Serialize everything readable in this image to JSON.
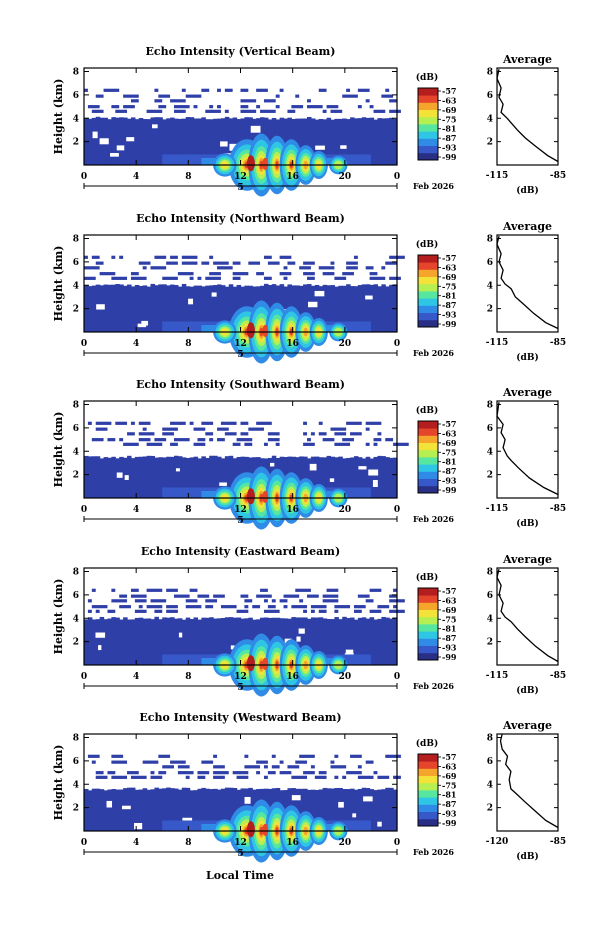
{
  "figure": {
    "xlabel": "Local Time",
    "date_label": "Feb 2026",
    "day_label": "5",
    "time_ticks": [
      "0",
      "4",
      "8",
      "12",
      "16",
      "20",
      "0"
    ],
    "height_ticks": [
      "2",
      "4",
      "6",
      "8"
    ],
    "colorbar_unit": "(dB)",
    "colorbar_ticks": [
      "-57",
      "-63",
      "-69",
      "-75",
      "-81",
      "-87",
      "-93",
      "-99"
    ],
    "avg_title": "Average",
    "avg_xlabel": "(dB)",
    "echo_color": "#2f3fa8",
    "colormap": [
      "#2a2f86",
      "#3658c8",
      "#2f8be6",
      "#2fc6e6",
      "#56e6a0",
      "#b6ef52",
      "#f3e339",
      "#f5a52b",
      "#e5452a",
      "#b51e1e"
    ]
  },
  "chart_data": [
    {
      "type": "heatmap",
      "title": "Echo Intensity (Vertical Beam)",
      "ylabel": "Height (km)",
      "xlim": [
        0,
        24
      ],
      "ylim": [
        0,
        8.3
      ],
      "color_range_db": [
        -99,
        -57
      ],
      "colorbar_ticks": [
        -57,
        -63,
        -69,
        -75,
        -81,
        -87,
        -93,
        -99
      ],
      "echo_top_km": 4.0,
      "avg_profile": {
        "title": "Average",
        "xlabel": "(dB)",
        "xticks": [
          "-115",
          "-85"
        ],
        "xlim": [
          -115,
          -85
        ],
        "yticks": [
          "2",
          "4",
          "6",
          "8"
        ],
        "points": [
          [
            -85,
            0.3
          ],
          [
            -90,
            0.8
          ],
          [
            -96,
            1.6
          ],
          [
            -101,
            2.3
          ],
          [
            -105,
            3.0
          ],
          [
            -108,
            3.6
          ],
          [
            -110,
            4.0
          ],
          [
            -113,
            4.5
          ],
          [
            -112,
            5.2
          ],
          [
            -114,
            5.8
          ],
          [
            -113,
            6.6
          ],
          [
            -115,
            7.4
          ],
          [
            -114,
            8.2
          ]
        ]
      }
    },
    {
      "type": "heatmap",
      "title": "Echo Intensity (Northward Beam)",
      "ylabel": "Height (km)",
      "xlim": [
        0,
        24
      ],
      "ylim": [
        0,
        8.3
      ],
      "color_range_db": [
        -99,
        -57
      ],
      "colorbar_ticks": [
        -57,
        -63,
        -69,
        -75,
        -81,
        -87,
        -93,
        -99
      ],
      "echo_top_km": 4.0,
      "avg_profile": {
        "title": "Average",
        "xlabel": "(dB)",
        "xticks": [
          "-115",
          "-85"
        ],
        "xlim": [
          -115,
          -85
        ],
        "yticks": [
          "2",
          "4",
          "6",
          "8"
        ],
        "points": [
          [
            -85,
            0.3
          ],
          [
            -91,
            0.8
          ],
          [
            -97,
            1.6
          ],
          [
            -102,
            2.4
          ],
          [
            -106,
            3.0
          ],
          [
            -108,
            3.7
          ],
          [
            -111,
            4.1
          ],
          [
            -113,
            4.6
          ],
          [
            -112,
            5.3
          ],
          [
            -114,
            6.0
          ],
          [
            -113,
            6.7
          ],
          [
            -115,
            7.5
          ],
          [
            -114,
            8.2
          ]
        ]
      }
    },
    {
      "type": "heatmap",
      "title": "Echo Intensity (Southward Beam)",
      "ylabel": "Height (km)",
      "xlim": [
        0,
        24
      ],
      "ylim": [
        0,
        8.3
      ],
      "color_range_db": [
        -99,
        -57
      ],
      "colorbar_ticks": [
        -57,
        -63,
        -69,
        -75,
        -81,
        -87,
        -93,
        -99
      ],
      "echo_top_km": 3.5,
      "avg_profile": {
        "title": "Average",
        "xlabel": "(dB)",
        "xticks": [
          "-115",
          "-85"
        ],
        "xlim": [
          -115,
          -85
        ],
        "yticks": [
          "2",
          "4",
          "6",
          "8"
        ],
        "points": [
          [
            -85,
            0.3
          ],
          [
            -92,
            0.9
          ],
          [
            -99,
            1.7
          ],
          [
            -104,
            2.5
          ],
          [
            -108,
            3.2
          ],
          [
            -110,
            3.6
          ],
          [
            -112,
            4.3
          ],
          [
            -111,
            5.0
          ],
          [
            -113,
            5.6
          ],
          [
            -112,
            6.3
          ],
          [
            -115,
            7.0
          ],
          [
            -114,
            8.2
          ]
        ]
      }
    },
    {
      "type": "heatmap",
      "title": "Echo Intensity (Eastward Beam)",
      "ylabel": "Height (km)",
      "xlim": [
        0,
        24
      ],
      "ylim": [
        0,
        8.3
      ],
      "color_range_db": [
        -99,
        -57
      ],
      "colorbar_ticks": [
        -57,
        -63,
        -69,
        -75,
        -81,
        -87,
        -93,
        -99
      ],
      "echo_top_km": 4.0,
      "avg_profile": {
        "title": "Average",
        "xlabel": "(dB)",
        "xticks": [
          "-115",
          "-85"
        ],
        "xlim": [
          -115,
          -85
        ],
        "yticks": [
          "2",
          "4",
          "6",
          "8"
        ],
        "points": [
          [
            -85,
            0.3
          ],
          [
            -90,
            0.8
          ],
          [
            -96,
            1.6
          ],
          [
            -101,
            2.4
          ],
          [
            -105,
            3.1
          ],
          [
            -108,
            3.7
          ],
          [
            -111,
            4.1
          ],
          [
            -113,
            4.6
          ],
          [
            -112,
            5.3
          ],
          [
            -114,
            6.0
          ],
          [
            -113,
            6.8
          ],
          [
            -115,
            7.5
          ],
          [
            -114,
            8.2
          ]
        ]
      }
    },
    {
      "type": "heatmap",
      "title": "Echo Intensity (Westward Beam)",
      "ylabel": "Height (km)",
      "xlim": [
        0,
        24
      ],
      "ylim": [
        0,
        8.3
      ],
      "color_range_db": [
        -99,
        -57
      ],
      "colorbar_ticks": [
        -57,
        -63,
        -69,
        -75,
        -81,
        -87,
        -93,
        -99
      ],
      "echo_top_km": 3.6,
      "avg_profile": {
        "title": "Average",
        "xlabel": "(dB)",
        "xticks": [
          "-120",
          "-85"
        ],
        "xlim": [
          -120,
          -85
        ],
        "yticks": [
          "2",
          "4",
          "6",
          "8"
        ],
        "points": [
          [
            -85,
            0.3
          ],
          [
            -92,
            0.9
          ],
          [
            -98,
            1.7
          ],
          [
            -104,
            2.5
          ],
          [
            -109,
            3.2
          ],
          [
            -112,
            3.6
          ],
          [
            -113,
            4.4
          ],
          [
            -112,
            5.1
          ],
          [
            -115,
            5.7
          ],
          [
            -114,
            6.4
          ],
          [
            -117,
            7.0
          ],
          [
            -118,
            7.7
          ],
          [
            -117,
            8.3
          ]
        ]
      }
    }
  ]
}
